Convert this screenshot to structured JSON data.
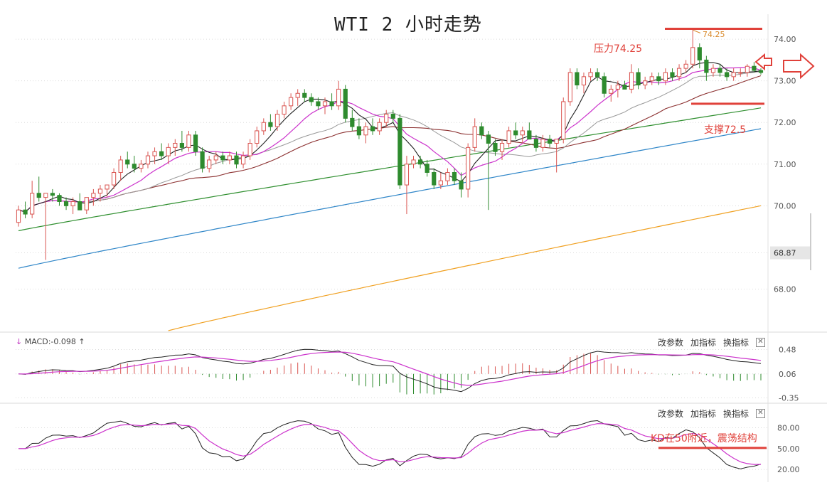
{
  "title": "WTI 2 小时走势",
  "annotations": {
    "resistance_label": "压力74.25",
    "support_label": "支撑72.5",
    "peak_label": "74.25",
    "kd_note": "KD在50附近，震荡结构"
  },
  "toolbar": {
    "change_params": "改参数",
    "add_indicator": "加指标",
    "switch_indicator": "换指标",
    "close": "✕"
  },
  "macd": {
    "label": "MACD:-0.098"
  },
  "colors": {
    "up": "#d9534f",
    "down": "#2e8b2e",
    "ma5": "#222222",
    "ma10": "#cc33cc",
    "ma20": "#999999",
    "ma30": "#8b2f2f",
    "ma60": "#2f8f2f",
    "ma120": "#2f86c8",
    "ma250": "#f0a020",
    "annot": "#e0413a"
  },
  "chart_data": [
    {
      "type": "candlestick",
      "title": "WTI 2 小时走势",
      "ylim": [
        67.0,
        74.6
      ],
      "price_marker": "68.87",
      "y_ticks": [
        "74.00",
        "73.00",
        "72.00",
        "71.00",
        "70.00",
        "68.00"
      ],
      "ohlc": [
        [
          69.6,
          70.0,
          69.5,
          69.9
        ],
        [
          69.9,
          70.1,
          69.7,
          69.8
        ],
        [
          69.8,
          70.6,
          69.7,
          70.3
        ],
        [
          70.3,
          70.7,
          70.1,
          70.2
        ],
        [
          70.2,
          70.3,
          68.7,
          70.3
        ],
        [
          70.3,
          70.4,
          70.1,
          70.25
        ],
        [
          70.25,
          70.3,
          70.0,
          70.1
        ],
        [
          70.1,
          70.2,
          69.9,
          70.0
        ],
        [
          70.0,
          70.2,
          69.8,
          70.1
        ],
        [
          70.1,
          70.3,
          69.9,
          69.9
        ],
        [
          69.9,
          70.2,
          69.8,
          70.2
        ],
        [
          70.2,
          70.4,
          70.0,
          70.3
        ],
        [
          70.3,
          70.5,
          70.1,
          70.4
        ],
        [
          70.4,
          70.5,
          70.2,
          70.5
        ],
        [
          70.5,
          70.9,
          70.4,
          70.8
        ],
        [
          70.8,
          71.2,
          70.6,
          71.1
        ],
        [
          71.1,
          71.3,
          70.9,
          71.0
        ],
        [
          71.0,
          71.2,
          70.8,
          70.9
        ],
        [
          70.9,
          71.1,
          70.8,
          71.0
        ],
        [
          71.0,
          71.3,
          70.9,
          71.2
        ],
        [
          71.2,
          71.4,
          71.0,
          71.3
        ],
        [
          71.3,
          71.5,
          71.1,
          71.2
        ],
        [
          71.2,
          71.5,
          71.0,
          71.4
        ],
        [
          71.4,
          71.6,
          71.2,
          71.5
        ],
        [
          71.5,
          71.8,
          71.3,
          71.4
        ],
        [
          71.4,
          71.8,
          71.3,
          71.7
        ],
        [
          71.7,
          71.8,
          71.2,
          71.3
        ],
        [
          71.3,
          71.4,
          70.8,
          70.9
        ],
        [
          70.9,
          71.2,
          70.8,
          71.1
        ],
        [
          71.1,
          71.3,
          71.0,
          71.2
        ],
        [
          71.2,
          71.3,
          71.0,
          71.1
        ],
        [
          71.1,
          71.3,
          71.0,
          71.2
        ],
        [
          71.2,
          71.3,
          70.9,
          71.0
        ],
        [
          71.0,
          71.3,
          70.9,
          71.2
        ],
        [
          71.2,
          71.6,
          71.1,
          71.5
        ],
        [
          71.5,
          71.9,
          71.4,
          71.8
        ],
        [
          71.8,
          72.1,
          71.7,
          72.0
        ],
        [
          72.0,
          72.2,
          71.8,
          71.9
        ],
        [
          71.9,
          72.3,
          71.8,
          72.2
        ],
        [
          72.2,
          72.5,
          72.1,
          72.4
        ],
        [
          72.4,
          72.7,
          72.3,
          72.6
        ],
        [
          72.6,
          72.8,
          72.4,
          72.7
        ],
        [
          72.7,
          72.8,
          72.5,
          72.6
        ],
        [
          72.6,
          72.7,
          72.4,
          72.5
        ],
        [
          72.5,
          72.6,
          72.3,
          72.4
        ],
        [
          72.4,
          72.6,
          72.2,
          72.5
        ],
        [
          72.5,
          72.7,
          72.3,
          72.4
        ],
        [
          72.4,
          73.0,
          72.3,
          72.8
        ],
        [
          72.8,
          72.9,
          72.0,
          72.1
        ],
        [
          72.1,
          72.3,
          71.8,
          71.9
        ],
        [
          71.9,
          72.1,
          71.6,
          71.7
        ],
        [
          71.7,
          72.0,
          71.5,
          71.9
        ],
        [
          71.9,
          72.1,
          71.7,
          71.8
        ],
        [
          71.8,
          72.1,
          71.7,
          72.0
        ],
        [
          72.0,
          72.3,
          71.9,
          72.2
        ],
        [
          72.2,
          72.3,
          72.0,
          72.1
        ],
        [
          72.1,
          72.2,
          70.4,
          70.5
        ],
        [
          70.5,
          71.2,
          69.8,
          71.0
        ],
        [
          71.0,
          71.2,
          70.9,
          71.1
        ],
        [
          71.1,
          71.2,
          70.9,
          71.0
        ],
        [
          71.0,
          71.1,
          70.7,
          70.8
        ],
        [
          70.8,
          70.9,
          70.4,
          70.5
        ],
        [
          70.5,
          70.8,
          70.4,
          70.6
        ],
        [
          70.6,
          70.9,
          70.5,
          70.8
        ],
        [
          70.8,
          70.9,
          70.5,
          70.6
        ],
        [
          70.6,
          70.8,
          70.2,
          70.4
        ],
        [
          70.4,
          71.5,
          70.2,
          71.4
        ],
        [
          71.4,
          72.1,
          71.3,
          71.9
        ],
        [
          71.9,
          72.0,
          71.6,
          71.7
        ],
        [
          71.7,
          71.8,
          69.9,
          71.5
        ],
        [
          71.5,
          71.6,
          71.2,
          71.3
        ],
        [
          71.3,
          71.6,
          71.1,
          71.5
        ],
        [
          71.5,
          71.9,
          71.4,
          71.8
        ],
        [
          71.8,
          72.0,
          71.6,
          71.7
        ],
        [
          71.7,
          71.9,
          71.5,
          71.8
        ],
        [
          71.8,
          72.0,
          71.6,
          71.6
        ],
        [
          71.6,
          71.7,
          71.3,
          71.4
        ],
        [
          71.4,
          71.7,
          71.3,
          71.6
        ],
        [
          71.6,
          71.7,
          71.4,
          71.5
        ],
        [
          71.5,
          71.6,
          70.8,
          71.6
        ],
        [
          71.6,
          72.6,
          71.5,
          72.5
        ],
        [
          72.5,
          73.3,
          72.4,
          73.2
        ],
        [
          73.2,
          73.3,
          72.8,
          72.9
        ],
        [
          72.9,
          73.2,
          72.7,
          73.1
        ],
        [
          73.1,
          73.3,
          73.0,
          73.2
        ],
        [
          73.2,
          73.3,
          73.0,
          73.1
        ],
        [
          73.1,
          73.2,
          72.6,
          72.7
        ],
        [
          72.7,
          72.9,
          72.5,
          72.8
        ],
        [
          72.8,
          73.0,
          72.6,
          72.9
        ],
        [
          72.9,
          73.0,
          72.8,
          72.8
        ],
        [
          72.8,
          73.4,
          72.7,
          73.2
        ],
        [
          73.2,
          73.3,
          72.8,
          72.9
        ],
        [
          72.9,
          73.1,
          72.8,
          73.0
        ],
        [
          73.0,
          73.2,
          72.9,
          73.1
        ],
        [
          73.1,
          73.2,
          72.9,
          73.0
        ],
        [
          73.0,
          73.3,
          72.9,
          73.2
        ],
        [
          73.2,
          73.3,
          73.0,
          73.1
        ],
        [
          73.1,
          73.4,
          73.0,
          73.3
        ],
        [
          73.3,
          73.5,
          73.2,
          73.4
        ],
        [
          73.4,
          74.25,
          73.3,
          73.8
        ],
        [
          73.8,
          73.9,
          73.3,
          73.5
        ],
        [
          73.5,
          73.6,
          73.0,
          73.2
        ],
        [
          73.2,
          73.4,
          73.1,
          73.3
        ],
        [
          73.3,
          73.4,
          73.1,
          73.2
        ],
        [
          73.2,
          73.3,
          73.0,
          73.1
        ],
        [
          73.1,
          73.3,
          73.0,
          73.2
        ],
        [
          73.2,
          73.3,
          73.1,
          73.2
        ],
        [
          73.2,
          73.4,
          73.1,
          73.35
        ],
        [
          73.35,
          73.45,
          73.2,
          73.25
        ],
        [
          73.25,
          73.3,
          73.15,
          73.2
        ]
      ],
      "moving_averages": [
        {
          "color": "#2f86c8",
          "from": [
            68.5
          ],
          "to": [
            71.85
          ],
          "shape": "rising"
        },
        {
          "color": "#2f8f2f",
          "from": [
            69.4
          ],
          "to": [
            72.35
          ],
          "shape": "rising"
        },
        {
          "color": "#f0a020",
          "from": [
            67.0
          ],
          "to": [
            70.0
          ],
          "shape": "rising",
          "start_index": 22
        }
      ],
      "levels": [
        {
          "name": "resistance",
          "value": 74.25
        },
        {
          "name": "support",
          "value": 72.45
        }
      ]
    },
    {
      "type": "line",
      "name": "MACD",
      "y_ticks": [
        "0.48",
        "0.06",
        "-0.35"
      ],
      "ylim": [
        -0.42,
        0.62
      ]
    },
    {
      "type": "line",
      "name": "KD",
      "y_ticks": [
        "80.00",
        "50.00",
        "20.00"
      ],
      "ylim": [
        10,
        100
      ]
    }
  ]
}
